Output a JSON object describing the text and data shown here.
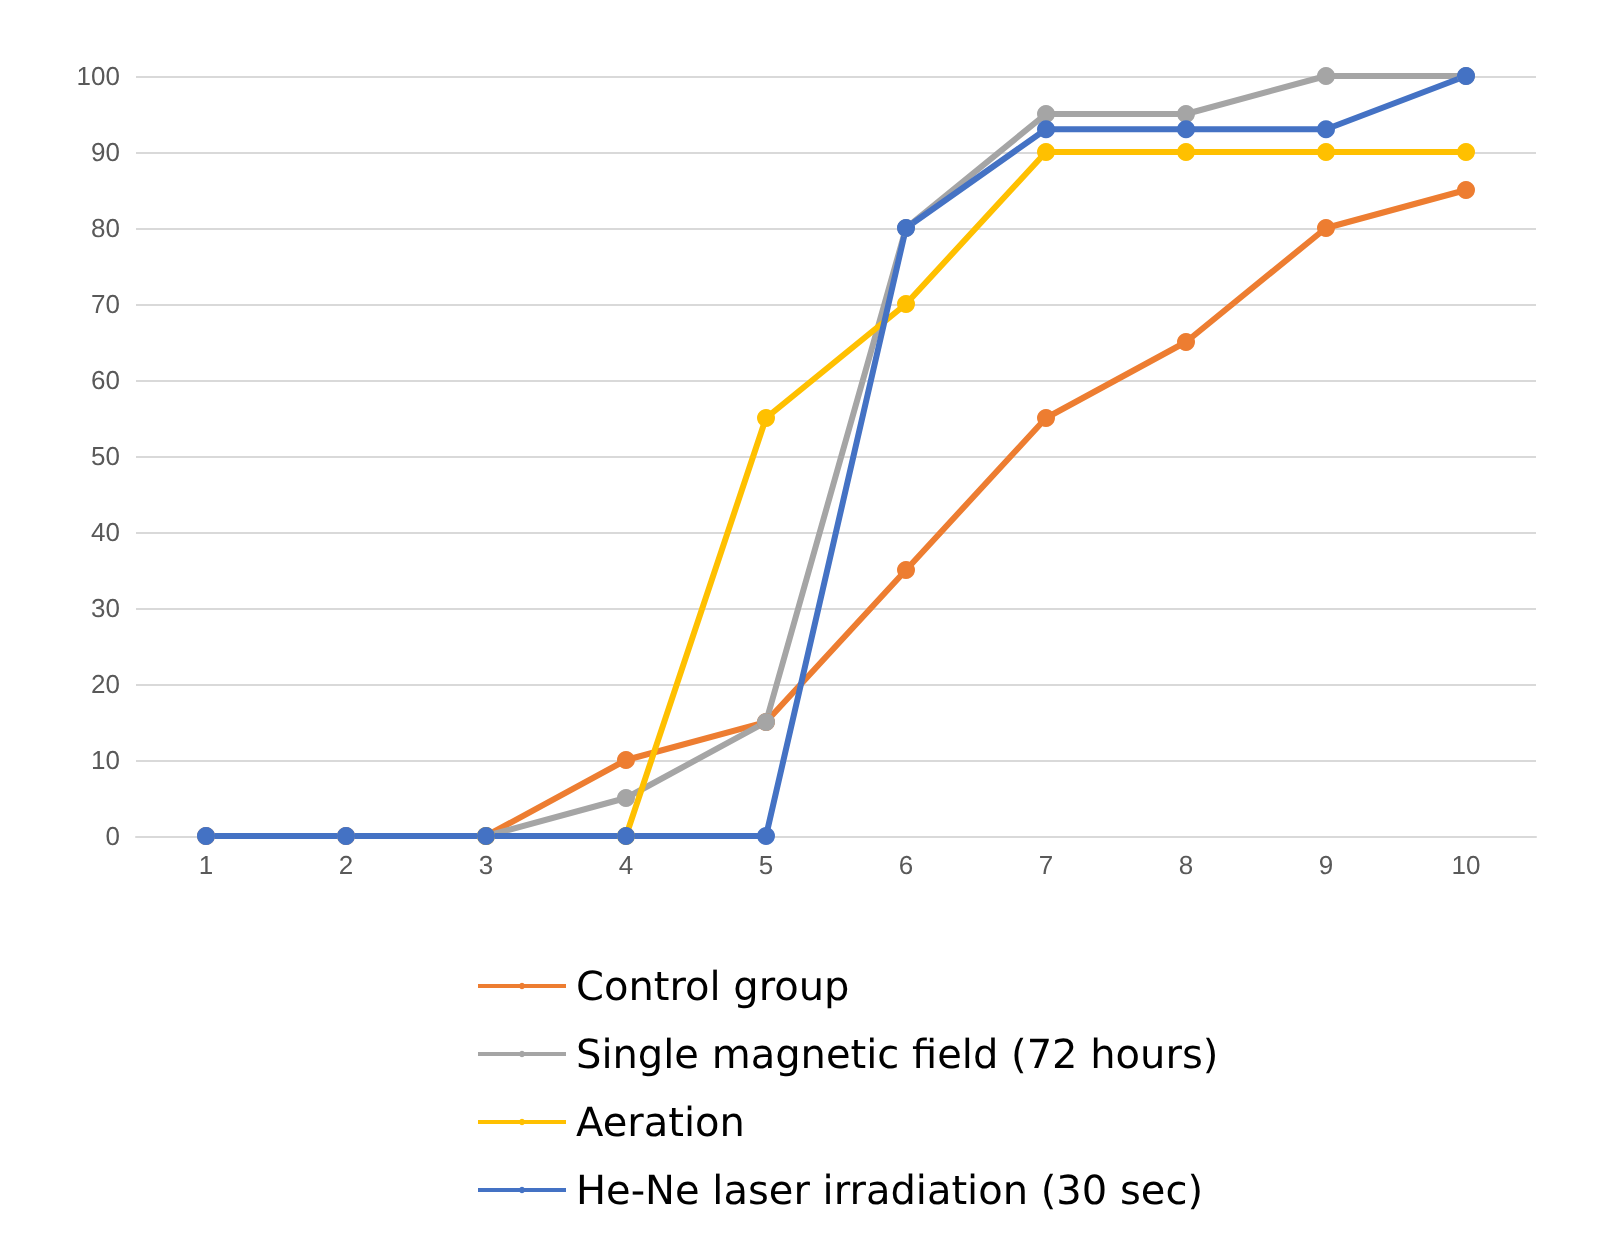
{
  "chart_data": {
    "type": "line",
    "categories": [
      "1",
      "2",
      "3",
      "4",
      "5",
      "6",
      "7",
      "8",
      "9",
      "10"
    ],
    "series": [
      {
        "name": "Control group",
        "color": "#ed7d31",
        "values": [
          0,
          0,
          0,
          10,
          15,
          35,
          55,
          65,
          80,
          85
        ]
      },
      {
        "name": "Single magnetic field (72 hours)",
        "color": "#a5a5a5",
        "values": [
          0,
          0,
          0,
          5,
          15,
          80,
          95,
          95,
          100,
          100
        ]
      },
      {
        "name": "Aeration",
        "color": "#ffc000",
        "values": [
          null,
          null,
          0,
          0,
          55,
          70,
          90,
          90,
          90,
          90
        ]
      },
      {
        "name": "He-Ne laser irradiation (30 sec)",
        "color": "#4472c4",
        "values": [
          0,
          0,
          0,
          0,
          0,
          80,
          93,
          93,
          93,
          100
        ]
      }
    ],
    "ylim": [
      0,
      100
    ],
    "yticks": [
      0,
      10,
      20,
      30,
      40,
      50,
      60,
      70,
      80,
      90,
      100
    ],
    "grid": "y",
    "legend": "bottom",
    "marker": "circle",
    "line_style": "solid"
  }
}
